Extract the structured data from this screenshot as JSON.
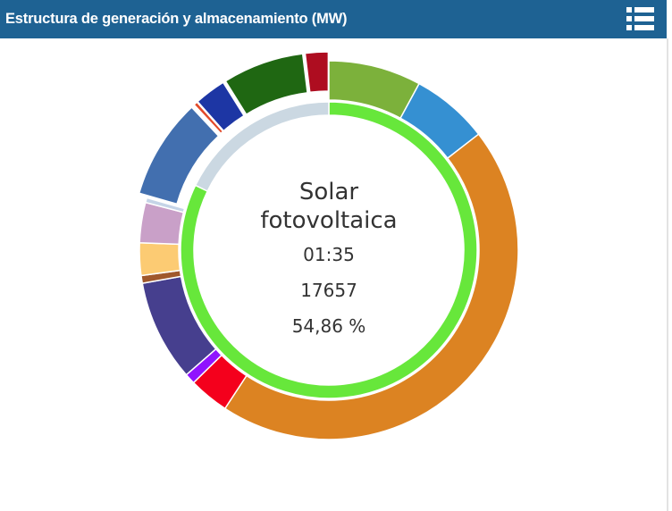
{
  "header": {
    "title": "Estructura de generación y almacenamiento (MW)",
    "menu_icon": "list-menu-icon"
  },
  "center": {
    "name_line1": "Solar",
    "name_line2": "fotovoltaica",
    "time": "01:35",
    "value": "17657",
    "percent": "54,86 %"
  },
  "chart_data": {
    "type": "donut",
    "title": "Estructura de generación y almacenamiento (MW)",
    "highlighted": {
      "time": "01:35",
      "value": 17657,
      "percent": 54.86
    },
    "outer_ring": {
      "segments": [
        {
          "value": 9.7,
          "color": "#7cb13b"
        },
        {
          "value": 8.1,
          "color": "#3590d2"
        },
        {
          "value": 54.86,
          "color": "#dc8322"
        },
        {
          "value": 4.2,
          "color": "#f4001c"
        },
        {
          "value": 1.1,
          "color": "#9013fe"
        },
        {
          "value": 10.6,
          "color": "#463f8e"
        },
        {
          "value": 0.8,
          "color": "#a0582c"
        },
        {
          "value": 3.4,
          "color": "#fccb73"
        },
        {
          "value": 4.2,
          "color": "#c9a0c8"
        },
        {
          "value": 0.5,
          "color": "#c5d4e7"
        },
        {
          "value": 10.5,
          "color": "#426faf",
          "exploded": true
        },
        {
          "value": 0.1,
          "color": "#bdbdbd",
          "exploded": true
        },
        {
          "value": 0.4,
          "color": "#e24a2a",
          "exploded": true
        },
        {
          "value": 3.3,
          "color": "#1d36a4",
          "exploded": true
        },
        {
          "value": 8.5,
          "color": "#1f6712",
          "exploded": true
        },
        {
          "value": 2.4,
          "color": "#ae0d20",
          "exploded": true
        }
      ]
    },
    "inner_ring": {
      "segments": [
        {
          "value": 82.2,
          "color": "#67e73b"
        },
        {
          "value": 17.8,
          "color": "#cbd8e2"
        }
      ]
    }
  }
}
